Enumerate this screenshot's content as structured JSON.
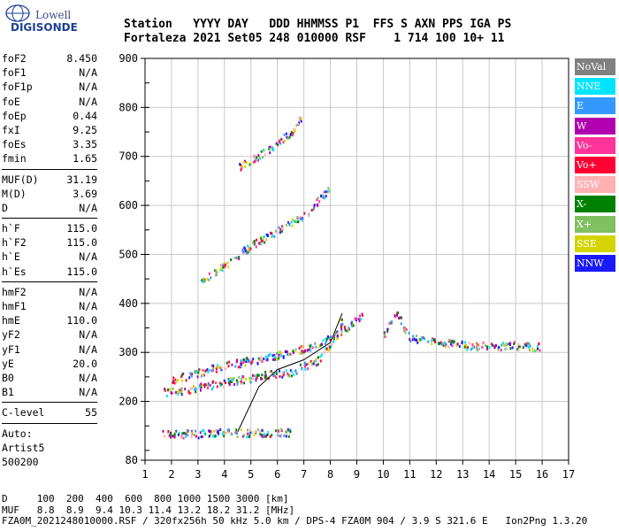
{
  "logo": {
    "line1": "Lowell",
    "line2": "DIGISONDE"
  },
  "header": {
    "line1": "Station   YYYY DAY   DDD HHMMSS P1  FFS S AXN PPS IGA PS",
    "line2": "Fortaleza 2021 Set05 248 010000 RSF    1 714 100 10+ 11"
  },
  "params": {
    "group1": [
      {
        "name": "foF2",
        "value": "8.450"
      },
      {
        "name": "foF1",
        "value": "N/A"
      },
      {
        "name": "foF1p",
        "value": "N/A"
      },
      {
        "name": "foE",
        "value": "N/A"
      },
      {
        "name": "foEp",
        "value": "0.44"
      },
      {
        "name": "fxI",
        "value": "9.25"
      },
      {
        "name": "foEs",
        "value": "3.35"
      },
      {
        "name": "fmin",
        "value": "1.65"
      }
    ],
    "group2": [
      {
        "name": "MUF(D)",
        "value": "31.19"
      },
      {
        "name": "M(D)",
        "value": "3.69"
      },
      {
        "name": "D",
        "value": "N/A"
      }
    ],
    "group3": [
      {
        "name": "h`F",
        "value": "115.0"
      },
      {
        "name": "h`F2",
        "value": "115.0"
      },
      {
        "name": "h`E",
        "value": "N/A"
      },
      {
        "name": "h`Es",
        "value": "115.0"
      }
    ],
    "group4": [
      {
        "name": "hmF2",
        "value": "N/A"
      },
      {
        "name": "hmF1",
        "value": "N/A"
      },
      {
        "name": "hmE",
        "value": "110.0"
      },
      {
        "name": "yF2",
        "value": "N/A"
      },
      {
        "name": "yF1",
        "value": "N/A"
      },
      {
        "name": "yE",
        "value": "20.0"
      },
      {
        "name": "B0",
        "value": "N/A"
      },
      {
        "name": "B1",
        "value": "N/A"
      }
    ],
    "group5": [
      {
        "name": "C-level",
        "value": "55"
      }
    ],
    "auto": {
      "label": "Auto:",
      "name": "Artist5",
      "version": "500200"
    }
  },
  "legend": [
    {
      "label": "NoVal",
      "color": "#808080"
    },
    {
      "label": "NNE",
      "color": "#00e5ff"
    },
    {
      "label": "E",
      "color": "#3399ff"
    },
    {
      "label": "W",
      "color": "#b000b0"
    },
    {
      "label": "Vo-",
      "color": "#ff3399"
    },
    {
      "label": "Vo+",
      "color": "#ff0033"
    },
    {
      "label": "SSW",
      "color": "#ffb0b0"
    },
    {
      "label": "X-",
      "color": "#008000"
    },
    {
      "label": "X+",
      "color": "#80c060"
    },
    {
      "label": "SSE",
      "color": "#d4d400"
    },
    {
      "label": "NNW",
      "color": "#1a1aff"
    }
  ],
  "chart_data": {
    "type": "scatter",
    "xlim": [
      1,
      17
    ],
    "ylim": [
      80,
      900
    ],
    "xticks": [
      "1",
      "2",
      "3",
      "4",
      "5",
      "6",
      "7",
      "8",
      "9",
      "10",
      "11",
      "12",
      "13",
      "14",
      "15",
      "16",
      "17"
    ],
    "yticks": [
      "80",
      "200",
      "300",
      "400",
      "500",
      "600",
      "700",
      "800",
      "900"
    ],
    "grid": true,
    "x_unit": "MHz",
    "y_unit": "km",
    "traces": [
      {
        "name": "Es low trace",
        "points": [
          [
            1.65,
            135
          ],
          [
            2.5,
            135
          ],
          [
            3.5,
            137
          ],
          [
            4.5,
            138
          ],
          [
            5.5,
            138
          ],
          [
            6.5,
            138
          ]
        ]
      },
      {
        "name": "F trace (O)",
        "points": [
          [
            1.7,
            220
          ],
          [
            2.5,
            225
          ],
          [
            3.5,
            235
          ],
          [
            4.5,
            245
          ],
          [
            5.5,
            255
          ],
          [
            6.5,
            262
          ],
          [
            7.5,
            285
          ],
          [
            8.0,
            320
          ],
          [
            8.45,
            370
          ]
        ]
      },
      {
        "name": "F trace (X)",
        "points": [
          [
            2.0,
            245
          ],
          [
            3.0,
            260
          ],
          [
            4.0,
            275
          ],
          [
            5.0,
            285
          ],
          [
            6.0,
            295
          ],
          [
            7.0,
            310
          ],
          [
            8.0,
            330
          ],
          [
            8.8,
            360
          ],
          [
            9.25,
            380
          ]
        ]
      },
      {
        "name": "second hop",
        "points": [
          [
            3.0,
            440
          ],
          [
            4.0,
            480
          ],
          [
            5.0,
            520
          ],
          [
            6.0,
            550
          ],
          [
            7.0,
            580
          ],
          [
            8.0,
            640
          ]
        ]
      },
      {
        "name": "third hop",
        "points": [
          [
            4.5,
            680
          ],
          [
            5.5,
            710
          ],
          [
            6.5,
            750
          ],
          [
            7.0,
            790
          ]
        ]
      },
      {
        "name": "oblique echoes",
        "points": [
          [
            10.0,
            340
          ],
          [
            10.5,
            380
          ],
          [
            11.0,
            330
          ],
          [
            13.3,
            315
          ],
          [
            14.0,
            315
          ],
          [
            15.0,
            315
          ],
          [
            15.9,
            313
          ]
        ]
      }
    ],
    "profile_line": [
      [
        4.5,
        138
      ],
      [
        5.3,
        230
      ],
      [
        6.0,
        265
      ],
      [
        7.0,
        285
      ],
      [
        8.0,
        320
      ],
      [
        8.45,
        380
      ]
    ]
  },
  "footer": {
    "line1": "D     100  200  400  600  800 1000 1500 3000 [km]",
    "line2": "MUF   8.8  8.9  9.4 10.3 11.4 13.2 18.2 31.2 [MHz]",
    "line3": "FZA0M_2021248010000.RSF / 320fx256h 50 kHz 5.0 km / DPS-4 FZA0M 904 / 3.9 S 321.6 E   Ion2Png 1.3.20"
  }
}
